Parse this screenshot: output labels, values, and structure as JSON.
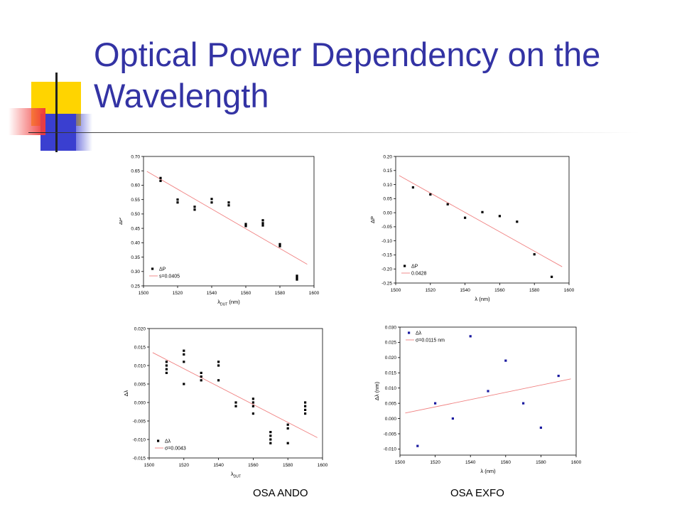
{
  "slide": {
    "title": "Optical Power Dependency on the Wavelength",
    "caption_left": "OSA ANDO",
    "caption_right": "OSA EXFO"
  },
  "colors": {
    "title": "#3333a4",
    "fit_line": "#f08080",
    "exfo_marker": "#1a1aa0",
    "ando_marker": "#000000",
    "deco_yellow": "#ffd400",
    "deco_red": "#f03a3a",
    "deco_blue": "#3a3fd0"
  },
  "chart_data": [
    {
      "id": "ando-power",
      "type": "scatter",
      "xlim": [
        1500,
        1600
      ],
      "ylim": [
        0.25,
        0.7
      ],
      "xticks": [
        1500,
        1520,
        1540,
        1560,
        1580,
        1600
      ],
      "yticks": [
        0.25,
        0.3,
        0.35,
        0.4,
        0.45,
        0.5,
        0.55,
        0.6,
        0.65,
        0.7
      ],
      "xtick_labels": [
        "1500",
        "1520",
        "1540",
        "1560",
        "1580",
        "1600"
      ],
      "ytick_labels": [
        "0.25",
        "0.30",
        "0.35",
        "0.40",
        "0.45",
        "0.50",
        "0.55",
        "0.60",
        "0.65",
        "0.70"
      ],
      "xlabel_main": "λ",
      "xlabel_sub": "DUT",
      "xlabel_unit": " (nm)",
      "ylabel": "ΔP",
      "grid": false,
      "legend": "bottom-left",
      "marker_color": "#000000",
      "series": [
        {
          "name": "ΔP",
          "points": [
            [
              1510,
              0.625
            ],
            [
              1510,
              0.615
            ],
            [
              1520,
              0.55
            ],
            [
              1520,
              0.54
            ],
            [
              1530,
              0.525
            ],
            [
              1530,
              0.515
            ],
            [
              1540,
              0.552
            ],
            [
              1540,
              0.54
            ],
            [
              1550,
              0.54
            ],
            [
              1550,
              0.53
            ],
            [
              1560,
              0.465
            ],
            [
              1560,
              0.458
            ],
            [
              1570,
              0.478
            ],
            [
              1570,
              0.468
            ],
            [
              1570,
              0.46
            ],
            [
              1580,
              0.395
            ],
            [
              1580,
              0.388
            ],
            [
              1590,
              0.285
            ],
            [
              1590,
              0.278
            ],
            [
              1590,
              0.272
            ]
          ]
        },
        {
          "name": "s=0.0405",
          "type": "line",
          "points": [
            [
              1502,
              0.648
            ],
            [
              1596,
              0.325
            ]
          ]
        }
      ]
    },
    {
      "id": "exfo-power",
      "type": "scatter",
      "xlim": [
        1500,
        1600
      ],
      "ylim": [
        -0.25,
        0.2
      ],
      "xticks": [
        1500,
        1520,
        1540,
        1560,
        1580,
        1600
      ],
      "yticks": [
        -0.25,
        -0.2,
        -0.15,
        -0.1,
        -0.05,
        0.0,
        0.05,
        0.1,
        0.15,
        0.2
      ],
      "xtick_labels": [
        "1500",
        "1520",
        "1540",
        "1560",
        "1580",
        "1600"
      ],
      "ytick_labels": [
        "-0.25",
        "-0.20",
        "-0.15",
        "-0.10",
        "-0.05",
        "0.00",
        "0.05",
        "0.10",
        "0.15",
        "0.20"
      ],
      "xlabel_main": "λ",
      "xlabel_sub": "",
      "xlabel_unit": " (nm)",
      "ylabel": "ΔP",
      "grid": false,
      "legend": "bottom-left",
      "marker_color": "#000000",
      "series": [
        {
          "name": "ΔP",
          "points": [
            [
              1510,
              0.09
            ],
            [
              1520,
              0.065
            ],
            [
              1530,
              0.03
            ],
            [
              1540,
              -0.018
            ],
            [
              1550,
              0.002
            ],
            [
              1560,
              -0.012
            ],
            [
              1570,
              -0.032
            ],
            [
              1580,
              -0.148
            ],
            [
              1590,
              -0.228
            ]
          ]
        },
        {
          "name": "0.0428",
          "type": "line",
          "points": [
            [
              1502,
              0.132
            ],
            [
              1596,
              -0.192
            ]
          ]
        }
      ]
    },
    {
      "id": "ando-wavelength",
      "type": "scatter",
      "xlim": [
        1500,
        1600
      ],
      "ylim": [
        -0.015,
        0.02
      ],
      "xticks": [
        1500,
        1520,
        1540,
        1560,
        1580,
        1600
      ],
      "yticks": [
        -0.015,
        -0.01,
        -0.005,
        0.0,
        0.005,
        0.01,
        0.015,
        0.02
      ],
      "xtick_labels": [
        "1500",
        "1520",
        "1540",
        "1560",
        "1580",
        "1600"
      ],
      "ytick_labels": [
        "-0.015",
        "-0.010",
        "-0.005",
        "0.000",
        "0.005",
        "0.010",
        "0.015",
        "0.020"
      ],
      "xlabel_main": "λ",
      "xlabel_sub": "DUT",
      "xlabel_unit": "",
      "ylabel": "Δλ",
      "grid": false,
      "legend": "bottom-left",
      "marker_color": "#000000",
      "series": [
        {
          "name": "Δλ",
          "points": [
            [
              1510,
              0.011
            ],
            [
              1510,
              0.01
            ],
            [
              1510,
              0.009
            ],
            [
              1510,
              0.008
            ],
            [
              1520,
              0.014
            ],
            [
              1520,
              0.013
            ],
            [
              1520,
              0.011
            ],
            [
              1520,
              0.005
            ],
            [
              1530,
              0.008
            ],
            [
              1530,
              0.007
            ],
            [
              1530,
              0.006
            ],
            [
              1540,
              0.011
            ],
            [
              1540,
              0.01
            ],
            [
              1540,
              0.006
            ],
            [
              1550,
              0.0
            ],
            [
              1550,
              -0.001
            ],
            [
              1560,
              0.001
            ],
            [
              1560,
              0.0
            ],
            [
              1560,
              -0.001
            ],
            [
              1560,
              -0.003
            ],
            [
              1570,
              -0.008
            ],
            [
              1570,
              -0.009
            ],
            [
              1570,
              -0.01
            ],
            [
              1570,
              -0.011
            ],
            [
              1580,
              -0.006
            ],
            [
              1580,
              -0.007
            ],
            [
              1580,
              -0.011
            ],
            [
              1590,
              0.0
            ],
            [
              1590,
              -0.001
            ],
            [
              1590,
              -0.002
            ],
            [
              1590,
              -0.003
            ]
          ]
        },
        {
          "name": "σ=0.0043",
          "type": "line",
          "points": [
            [
              1502,
              0.0135
            ],
            [
              1597,
              -0.0095
            ]
          ]
        }
      ]
    },
    {
      "id": "exfo-wavelength",
      "type": "scatter",
      "xlim": [
        1500,
        1600
      ],
      "ylim": [
        -0.012,
        0.03
      ],
      "xticks": [
        1500,
        1520,
        1540,
        1560,
        1580,
        1600
      ],
      "yticks": [
        -0.01,
        -0.005,
        0.0,
        0.005,
        0.01,
        0.015,
        0.02,
        0.025,
        0.03
      ],
      "xtick_labels": [
        "1500",
        "1520",
        "1540",
        "1560",
        "1580",
        "1600"
      ],
      "ytick_labels": [
        "-0.010",
        "-0.005",
        "0.000",
        "0.005",
        "0.010",
        "0.015",
        "0.020",
        "0.025",
        "0.030"
      ],
      "xlabel_main": "λ",
      "xlabel_sub": "",
      "xlabel_unit": " (nm)",
      "ylabel": "Δλ (nm)",
      "grid": false,
      "legend": "top-left",
      "marker_color": "#1a1aa0",
      "series": [
        {
          "name": "Δλ",
          "points": [
            [
              1510,
              -0.009
            ],
            [
              1520,
              0.005
            ],
            [
              1530,
              0.0
            ],
            [
              1540,
              0.027
            ],
            [
              1550,
              0.009
            ],
            [
              1560,
              0.019
            ],
            [
              1570,
              0.005
            ],
            [
              1580,
              -0.003
            ],
            [
              1590,
              0.014
            ]
          ]
        },
        {
          "name": "σ=0.0115 nm",
          "type": "line",
          "points": [
            [
              1503,
              0.0018
            ],
            [
              1597,
              0.013
            ]
          ]
        }
      ]
    }
  ]
}
